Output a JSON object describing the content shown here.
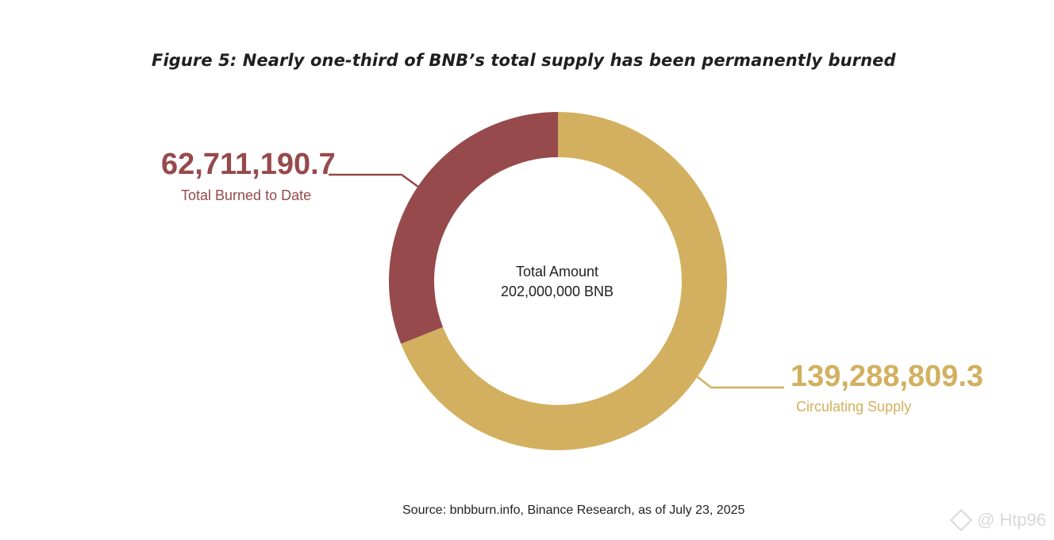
{
  "chart_data": {
    "type": "pie",
    "title": "Figure 5: Nearly one-third of BNB’s total supply has been permanently burned",
    "center": {
      "line1": "Total Amount",
      "line2": "202,000,000 BNB"
    },
    "slices": [
      {
        "label": "Total Burned to Date",
        "value": 62711190.7,
        "value_text": "62,711,190.7",
        "color": "#964a4c"
      },
      {
        "label": "Circulating Supply",
        "value": 139288809.3,
        "value_text": "139,288,809.3",
        "color": "#d2b05f"
      }
    ],
    "source": "Source: bnbburn.info, Binance Research, as of July 23, 2025"
  },
  "watermark": {
    "icon": "binance-diamond-icon",
    "text": "@ Htp96"
  }
}
